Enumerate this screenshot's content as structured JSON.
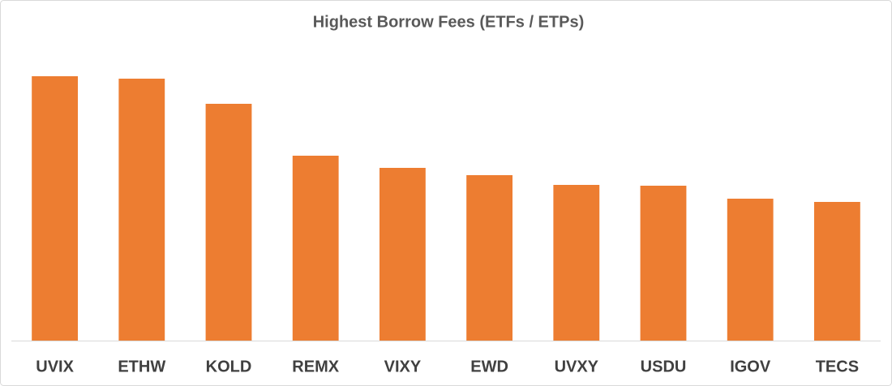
{
  "chart_data": {
    "type": "bar",
    "title": "Highest Borrow Fees (ETFs / ETPs)",
    "categories": [
      "UVIX",
      "ETHW",
      "KOLD",
      "REMX",
      "VIXY",
      "EWD",
      "UVXY",
      "USDU",
      "IGOV",
      "TECS"
    ],
    "values": [
      326,
      323,
      292,
      228,
      213,
      204,
      192,
      191,
      175,
      171
    ],
    "color": "#ed7d31",
    "ylim": [
      0,
      360
    ]
  }
}
